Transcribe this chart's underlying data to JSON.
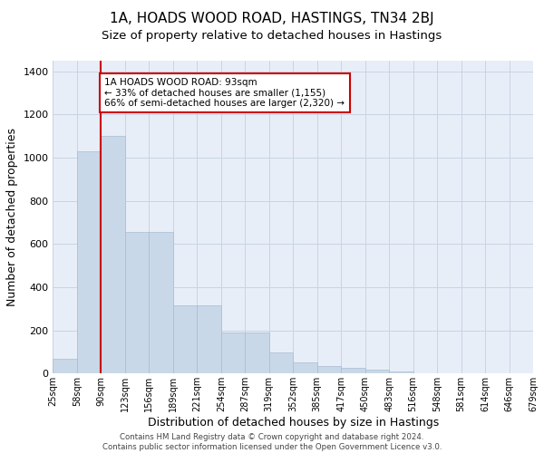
{
  "title1": "1A, HOADS WOOD ROAD, HASTINGS, TN34 2BJ",
  "title2": "Size of property relative to detached houses in Hastings",
  "xlabel": "Distribution of detached houses by size in Hastings",
  "ylabel": "Number of detached properties",
  "bar_values": [
    70,
    1030,
    1100,
    655,
    655,
    315,
    315,
    190,
    190,
    100,
    50,
    35,
    25,
    20,
    10,
    0,
    0,
    0,
    0,
    0
  ],
  "categories": [
    "25sqm",
    "58sqm",
    "90sqm",
    "123sqm",
    "156sqm",
    "189sqm",
    "221sqm",
    "254sqm",
    "287sqm",
    "319sqm",
    "352sqm",
    "385sqm",
    "417sqm",
    "450sqm",
    "483sqm",
    "516sqm",
    "548sqm",
    "581sqm",
    "614sqm",
    "646sqm",
    "679sqm"
  ],
  "bar_color": "#c8d8e8",
  "bar_edge_color": "#a8bcd0",
  "grid_color": "#c8d4e4",
  "background_color": "#e8eef8",
  "vline_color": "#cc0000",
  "annotation_text": "1A HOADS WOOD ROAD: 93sqm\n← 33% of detached houses are smaller (1,155)\n66% of semi-detached houses are larger (2,320) →",
  "annotation_box_color": "white",
  "annotation_box_edge": "#cc0000",
  "ylim": [
    0,
    1450
  ],
  "yticks": [
    0,
    200,
    400,
    600,
    800,
    1000,
    1200,
    1400
  ],
  "footnote": "Contains HM Land Registry data © Crown copyright and database right 2024.\nContains public sector information licensed under the Open Government Licence v3.0.",
  "title1_fontsize": 11,
  "title2_fontsize": 9.5,
  "xlabel_fontsize": 9,
  "ylabel_fontsize": 9,
  "tick_fontsize": 8,
  "annotation_fontsize": 7.5
}
